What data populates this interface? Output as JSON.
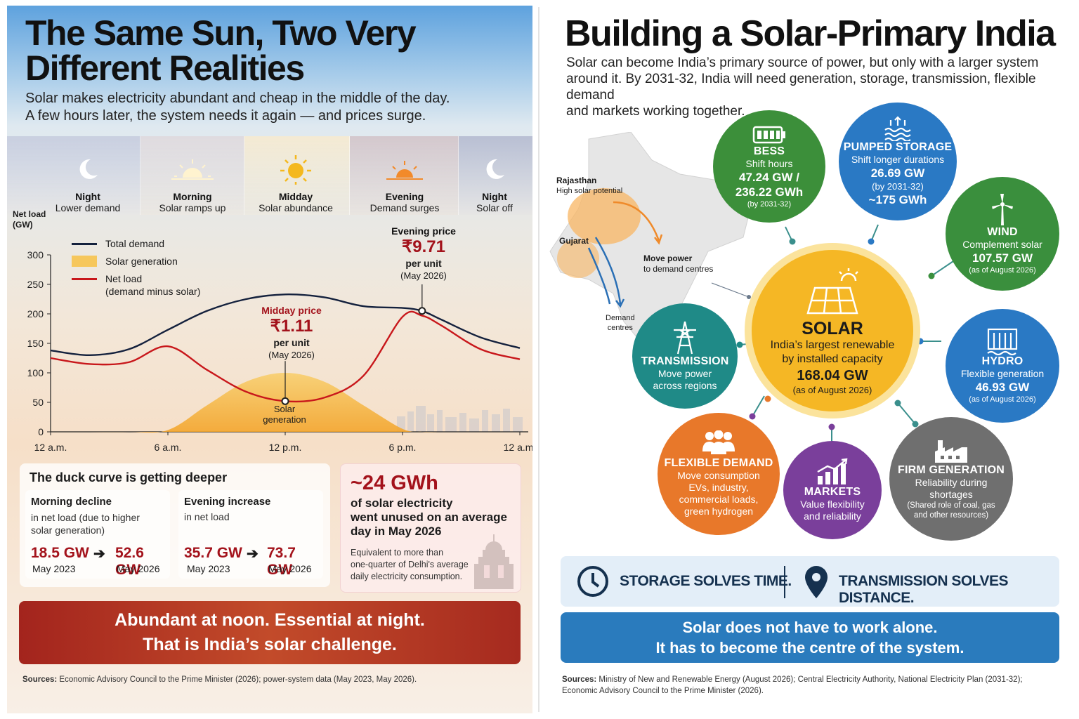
{
  "left": {
    "title_line1": "The Same Sun, Two Very",
    "title_line2": "Different Realities",
    "subtitle_line1": "Solar makes electricity abundant and cheap in the middle of the day.",
    "subtitle_line2": "A few hours later, the system needs it again — and prices surge.",
    "periods": [
      {
        "name": "Night",
        "desc": "Lower demand",
        "icon": "moon-icon"
      },
      {
        "name": "Morning",
        "desc": "Solar ramps up",
        "icon": "sunrise-icon"
      },
      {
        "name": "Midday",
        "desc": "Solar abundance",
        "icon": "sun-icon"
      },
      {
        "name": "Evening",
        "desc": "Demand surges",
        "icon": "sunset-icon"
      },
      {
        "name": "Night",
        "desc": "Solar off",
        "icon": "moon-icon"
      }
    ],
    "ylabel_line1": "Net load",
    "ylabel_line2": "(GW)",
    "legend": {
      "total": "Total demand",
      "solar": "Solar generation",
      "net": "Net load",
      "net_note": "(demand minus solar)"
    },
    "midday_price": {
      "label": "Midday price",
      "value": "₹1.11",
      "unit": "per unit",
      "date": "(May 2026)"
    },
    "evening_price": {
      "label": "Evening price",
      "value": "₹9.71",
      "unit": "per unit",
      "date": "(May 2026)"
    },
    "solar_annotation_line1": "Solar",
    "solar_annotation_line2": "generation",
    "duck": {
      "title": "The duck curve is getting deeper",
      "morning_title": "Morning decline",
      "morning_desc_line1": "in net load (due to higher",
      "morning_desc_line2": "solar generation)",
      "morning_from": "18.5 GW",
      "morning_from_date": "May 2023",
      "morning_to": "52.6 GW",
      "morning_to_date": "May 2026",
      "evening_title": "Evening increase",
      "evening_desc": "in net load",
      "evening_from": "35.7 GW",
      "evening_from_date": "May 2023",
      "evening_to": "73.7 GW",
      "evening_to_date": "May 2026"
    },
    "unused": {
      "value": "~24 GWh",
      "line1": "of solar electricity",
      "line2": "went unused on an average",
      "line3": "day in May 2026",
      "note1": "Equivalent to more than",
      "note2": "one-quarter of Delhi's average",
      "note3": "daily electricity consumption."
    },
    "banner_line1": "Abundant at noon. Essential at night.",
    "banner_line2": "That is India’s solar challenge.",
    "sources_label": "Sources:",
    "sources_text": "Economic Advisory Council to the Prime Minister (2026); power-system data (May 2023, May 2026)."
  },
  "chart_data": {
    "type": "line",
    "ylabel": "Net load (GW)",
    "ylim": [
      0,
      300
    ],
    "yticks": [
      0,
      50,
      100,
      150,
      200,
      250,
      300
    ],
    "xticks": [
      "12 a.m.",
      "6 a.m.",
      "12 p.m.",
      "6 p.m.",
      "12 a.m."
    ],
    "x_hours": [
      0,
      2,
      4,
      6,
      8,
      10,
      12,
      14,
      16,
      18,
      19,
      20,
      22,
      24
    ],
    "series": [
      {
        "name": "Total demand",
        "color": "#14213d",
        "values": [
          138,
          130,
          140,
          173,
          205,
          225,
          233,
          228,
          213,
          210,
          205,
          190,
          160,
          142
        ]
      },
      {
        "name": "Solar generation",
        "color": "#f4b63e",
        "values": [
          0,
          0,
          0,
          3,
          45,
          85,
          100,
          85,
          45,
          5,
          0,
          0,
          0,
          0
        ]
      },
      {
        "name": "Net load",
        "color": "#c8171b",
        "values": [
          125,
          115,
          118,
          145,
          105,
          68,
          52,
          58,
          95,
          195,
          197,
          180,
          140,
          123
        ]
      }
    ],
    "grid": false
  },
  "right": {
    "title": "Building a Solar-Primary India",
    "intro_line1": "Solar can become India’s primary source of power, but only with a larger system",
    "intro_line2": "around it. By 2031-32, India will need generation, storage, transmission, flexible demand",
    "intro_line3": "and markets working together.",
    "map": {
      "rajasthan": "Rajasthan",
      "rajasthan_note": "High solar potential",
      "gujarat": "Gujarat",
      "move_line1": "Move power",
      "move_line2": "to demand centres",
      "demand_line1": "Demand",
      "demand_line2": "centres"
    },
    "solar": {
      "title": "SOLAR",
      "line1": "India’s largest renewable",
      "line2": "by installed capacity",
      "value": "168.04 GW",
      "note": "(as of August 2026)",
      "color": "#f5b725"
    },
    "bess": {
      "title": "BESS",
      "desc": "Shift hours",
      "value1": "47.24 GW /",
      "value2": "236.22 GWh",
      "note": "(by 2031-32)",
      "color": "#3c8f3a"
    },
    "pumped": {
      "title": "PUMPED STORAGE",
      "desc": "Shift longer durations",
      "value1": "26.69 GW",
      "note": "(by 2031-32)",
      "value2": "~175 GWh",
      "color": "#2a79c4"
    },
    "wind": {
      "title": "WIND",
      "desc": "Complement solar",
      "value": "107.57 GW",
      "note": "(as of August 2026)",
      "color": "#3a8f3d"
    },
    "hydro": {
      "title": "HYDRO",
      "desc": "Flexible generation",
      "value": "46.93 GW",
      "note": "(as of August 2026)",
      "color": "#2a79c4"
    },
    "transmission": {
      "title": "TRANSMISSION",
      "desc1": "Move power",
      "desc2": "across regions",
      "color": "#1f8a87"
    },
    "flexible": {
      "title": "FLEXIBLE DEMAND",
      "desc1": "Move consumption",
      "desc2": "EVs, industry,",
      "desc3": "commercial loads,",
      "desc4": "green hydrogen",
      "color": "#e8782a"
    },
    "markets": {
      "title": "MARKETS",
      "desc1": "Value flexibility",
      "desc2": "and reliability",
      "color": "#7a3f9b"
    },
    "firm": {
      "title": "FIRM GENERATION",
      "desc1": "Reliability during",
      "desc2": "shortages",
      "note1": "(Shared role of coal, gas",
      "note2": "and other resources)",
      "color": "#6f6f6f"
    },
    "storage_text": "STORAGE SOLVES TIME.",
    "transmission_text": "TRANSMISSION SOLVES DISTANCE.",
    "banner_line1": "Solar does not have to work alone.",
    "banner_line2": "It has to become the centre of the system.",
    "sources_label": "Sources:",
    "sources_line1": "Ministry of New and Renewable Energy (August 2026); Central Electricity Authority, National Electricity Plan (2031-32);",
    "sources_line2": "Economic Advisory Council to the Prime Minister (2026)."
  }
}
